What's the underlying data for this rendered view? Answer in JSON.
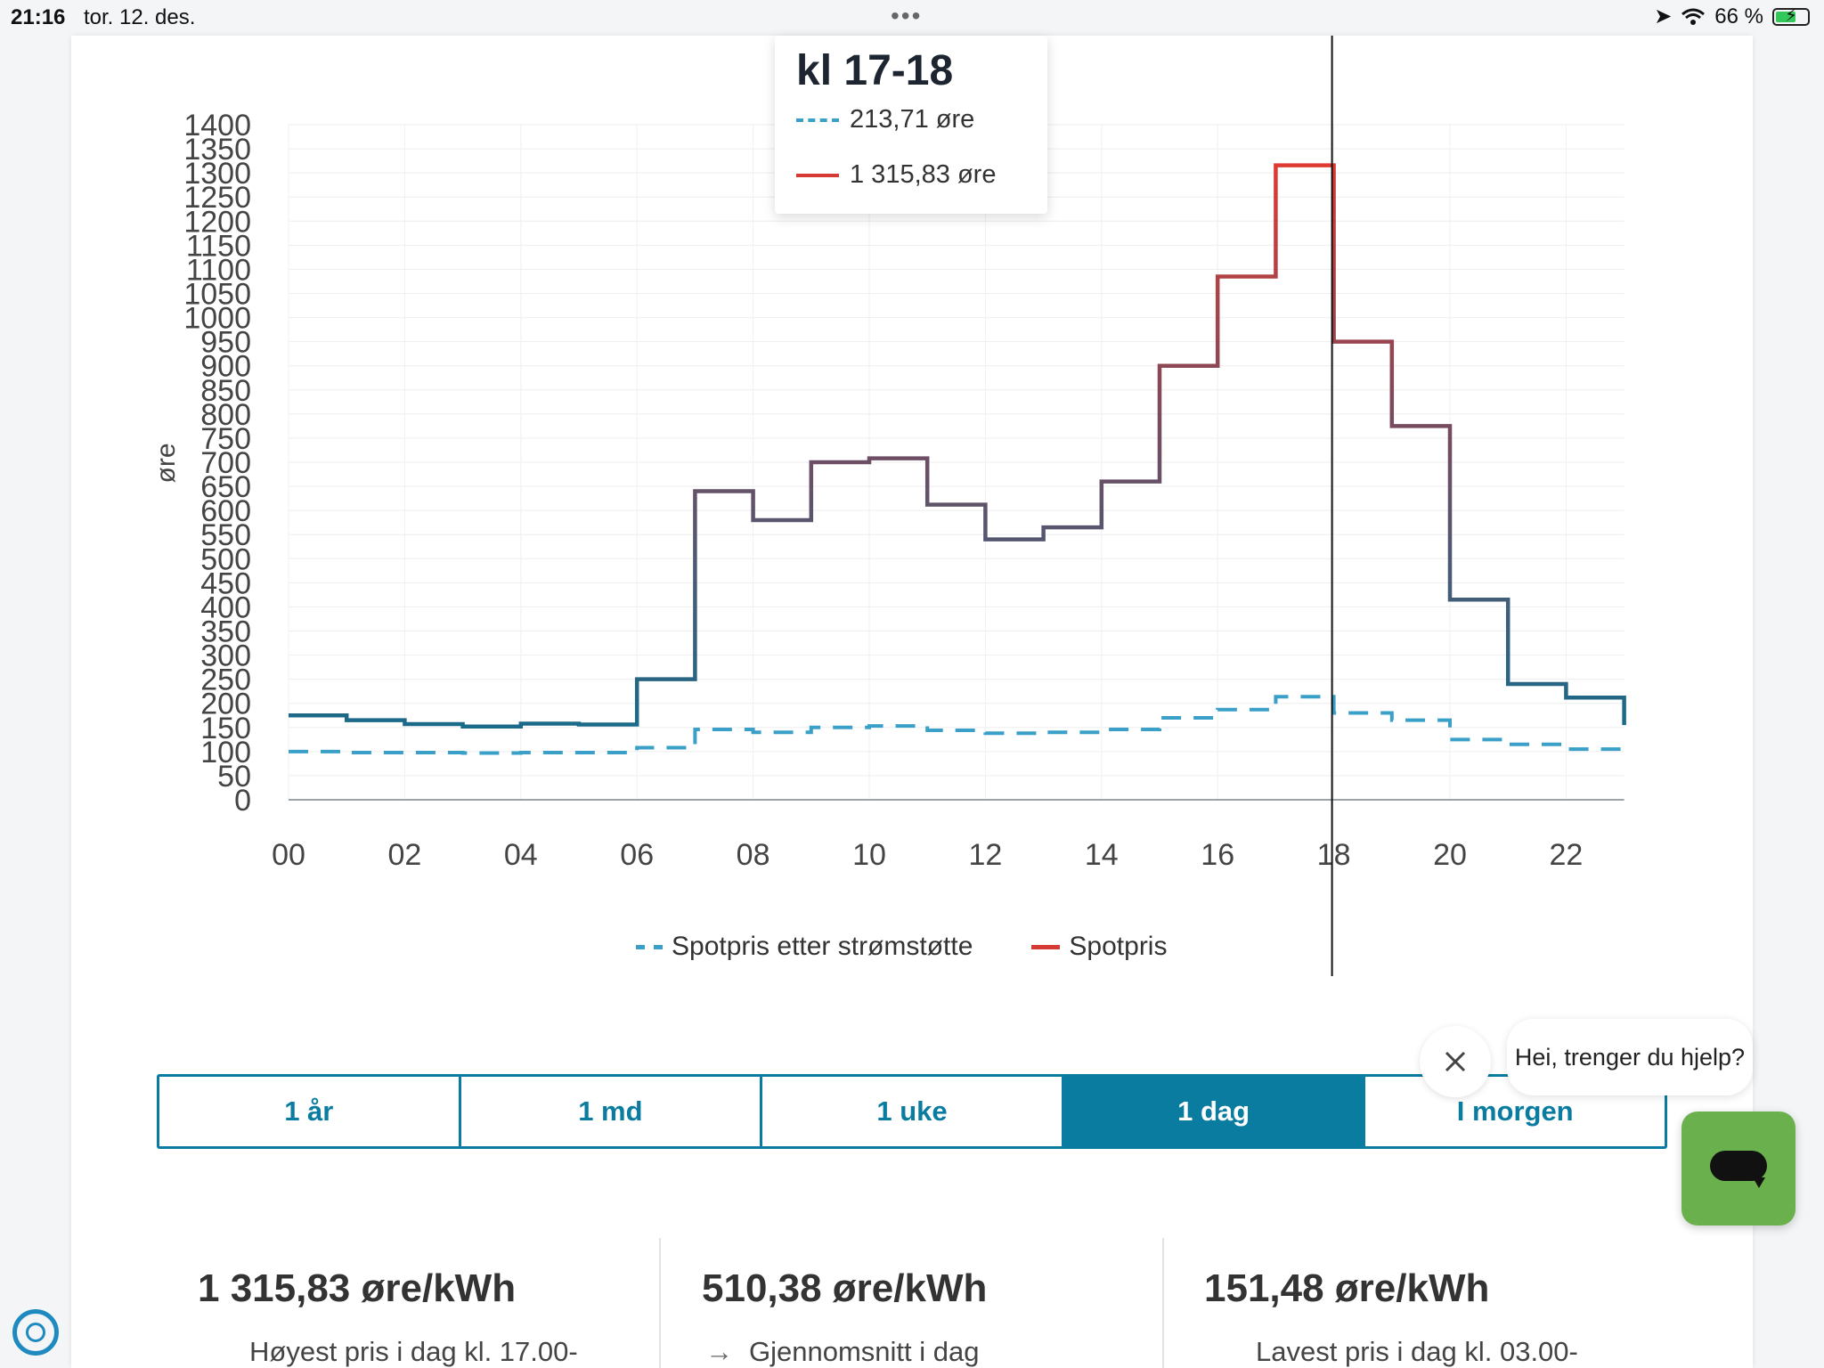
{
  "status_bar": {
    "time": "21:16",
    "date": "tor. 12. des.",
    "battery": "66 %",
    "battery_level": 0.66
  },
  "tooltip": {
    "title": "kl 17-18",
    "dashed_value": "213,71 øre",
    "solid_value": "1 315,83 øre"
  },
  "legend": {
    "dashed_label": "Spotpris etter strømstøtte",
    "solid_label": "Spotpris"
  },
  "tabs": [
    {
      "label": "1 år",
      "active": false
    },
    {
      "label": "1 md",
      "active": false
    },
    {
      "label": "1 uke",
      "active": false
    },
    {
      "label": "1 dag",
      "active": true
    },
    {
      "label": "I morgen",
      "active": false
    }
  ],
  "chat": {
    "bubble_text": "Hei, trenger du hjelp?"
  },
  "stats": [
    {
      "value": "1 315,83 øre/kWh",
      "label": "Høyest pris i dag kl. 17.00-"
    },
    {
      "value": "510,38 øre/kWh",
      "label": "Gjennomsnitt i dag"
    },
    {
      "value": "151,48 øre/kWh",
      "label": "Lavest pris i dag kl. 03.00-"
    }
  ],
  "colors": {
    "accent": "#0a7ca0",
    "spot_low": "#1a6a8a",
    "spot_high": "#e03a32",
    "support": "#3aa0c8",
    "chat_green": "#6ab04c"
  },
  "chart_data": {
    "type": "line",
    "step": true,
    "title": "",
    "xlabel": "",
    "ylabel": "øre",
    "ylim": [
      0,
      1400
    ],
    "ytick_step": 50,
    "xticks": [
      "00",
      "02",
      "04",
      "06",
      "08",
      "10",
      "12",
      "14",
      "16",
      "18",
      "20",
      "22"
    ],
    "hours": [
      0,
      1,
      2,
      3,
      4,
      5,
      6,
      7,
      8,
      9,
      10,
      11,
      12,
      13,
      14,
      15,
      16,
      17,
      18,
      19,
      20,
      21,
      22,
      23
    ],
    "series": [
      {
        "name": "Spotpris",
        "style": "solid",
        "values": [
          175,
          165,
          157,
          152,
          158,
          156,
          250,
          640,
          580,
          700,
          708,
          612,
          540,
          565,
          660,
          900,
          1085,
          1315.83,
          950,
          775,
          415,
          240,
          212,
          155
        ]
      },
      {
        "name": "Spotpris etter strømstøtte",
        "style": "dashed",
        "values": [
          100,
          98,
          98,
          97,
          98,
          98,
          108,
          146,
          140,
          150,
          153,
          144,
          138,
          140,
          146,
          170,
          187,
          213.71,
          180,
          165,
          125,
          115,
          105,
          103
        ]
      }
    ],
    "selected_hour": 17,
    "grid": true,
    "legend_position": "bottom"
  }
}
